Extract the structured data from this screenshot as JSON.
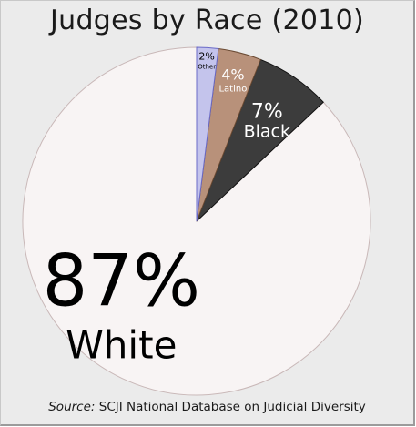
{
  "chart_data": {
    "type": "pie",
    "title": "Judges by Race (2010)",
    "start_angle_deg": 0,
    "direction": "counterclockwise",
    "slices": [
      {
        "percent": 87,
        "value_label": "87%",
        "category": "White",
        "color": "#f8f4f4"
      },
      {
        "percent": 7,
        "value_label": "7%",
        "category": "Black",
        "color": "#3c3c3c"
      },
      {
        "percent": 4,
        "value_label": "4%",
        "category": "Latino",
        "color": "#b8917a"
      },
      {
        "percent": 2,
        "value_label": "2%",
        "category": "Other",
        "color": "#c4c4ec"
      }
    ],
    "source_label": "Source:",
    "source_text": "SCJI National Database on Judicial Diversity"
  }
}
